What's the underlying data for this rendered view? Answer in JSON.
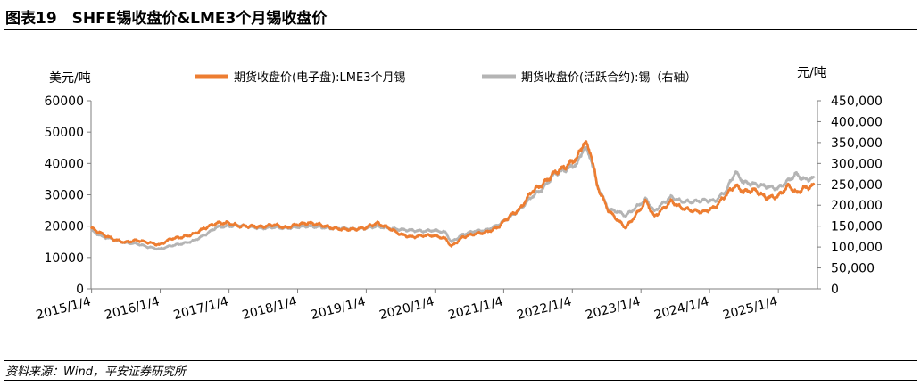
{
  "figure_title": "图表19　SHFE锡收盘价&LME3个月锡收盘价",
  "source_note": "资料来源：Wind，平安证券研究所",
  "colors": {
    "lme": "#ED7D31",
    "shfe": "#B4B4B4"
  },
  "chart_data": {
    "type": "line",
    "ylabel_left": "美元/吨",
    "ylabel_right": "元/吨",
    "ylim_left": [
      0,
      60000
    ],
    "ylim_right": [
      0,
      450000
    ],
    "yticks_left": [
      "0",
      "10000",
      "20000",
      "30000",
      "40000",
      "50000",
      "60000"
    ],
    "yticks_right": [
      "0",
      "50,000",
      "100,000",
      "150,000",
      "200,000",
      "250,000",
      "300,000",
      "350,000",
      "400,000",
      "450,000"
    ],
    "x_range": [
      "2015-01-01",
      "2025-07-31"
    ],
    "xticks": [
      "2015/1/4",
      "2016/1/4",
      "2017/1/4",
      "2018/1/4",
      "2019/1/4",
      "2020/1/4",
      "2021/1/4",
      "2022/1/4",
      "2023/1/4",
      "2024/1/4",
      "2025/1/4"
    ],
    "legend_position": "top",
    "series": [
      {
        "name": "期货收盘价(电子盘):LME3个月锡",
        "axis": "left",
        "dates": [
          "2015-01-01",
          "2015-03-01",
          "2015-05-01",
          "2015-07-01",
          "2015-09-01",
          "2015-11-01",
          "2016-01-01",
          "2016-03-01",
          "2016-05-01",
          "2016-07-01",
          "2016-09-01",
          "2016-11-01",
          "2017-01-01",
          "2017-03-01",
          "2017-05-01",
          "2017-07-01",
          "2017-09-01",
          "2017-11-01",
          "2018-01-01",
          "2018-03-01",
          "2018-05-01",
          "2018-07-01",
          "2018-09-01",
          "2018-11-01",
          "2019-01-01",
          "2019-03-01",
          "2019-05-01",
          "2019-07-01",
          "2019-09-01",
          "2019-11-01",
          "2020-01-01",
          "2020-03-01",
          "2020-04-01",
          "2020-06-01",
          "2020-08-01",
          "2020-10-01",
          "2020-12-01",
          "2021-02-01",
          "2021-04-01",
          "2021-06-01",
          "2021-08-01",
          "2021-10-01",
          "2021-12-01",
          "2022-02-01",
          "2022-03-08",
          "2022-04-15",
          "2022-05-15",
          "2022-07-15",
          "2022-09-01",
          "2022-10-15",
          "2022-12-01",
          "2023-02-01",
          "2023-03-15",
          "2023-05-01",
          "2023-06-15",
          "2023-08-01",
          "2023-10-01",
          "2023-12-01",
          "2024-02-01",
          "2024-04-01",
          "2024-05-20",
          "2024-07-01",
          "2024-09-01",
          "2024-11-01",
          "2025-01-01",
          "2025-03-01",
          "2025-04-10",
          "2025-05-15",
          "2025-07-15"
        ],
        "values": [
          19500,
          17500,
          15800,
          14800,
          15500,
          14800,
          14000,
          16000,
          16500,
          17500,
          19500,
          21000,
          21000,
          20000,
          20000,
          19800,
          20500,
          19500,
          20500,
          21000,
          20500,
          19500,
          19000,
          19000,
          19500,
          21000,
          19500,
          17500,
          16500,
          17000,
          17000,
          16000,
          13500,
          16500,
          17500,
          18000,
          19500,
          23000,
          25500,
          31000,
          33500,
          37000,
          39000,
          42000,
          47000,
          43000,
          33000,
          25000,
          22000,
          19500,
          23000,
          28000,
          23000,
          25500,
          28000,
          26000,
          25000,
          24500,
          26000,
          30000,
          33000,
          31000,
          31500,
          29000,
          29500,
          33000,
          30500,
          32000,
          33000
        ]
      },
      {
        "name": "期货收盘价(活跃合约):锡（右轴）",
        "axis": "right",
        "dates": [
          "2015-01-01",
          "2015-03-01",
          "2015-05-01",
          "2015-07-01",
          "2015-09-01",
          "2015-11-01",
          "2016-01-01",
          "2016-03-01",
          "2016-05-01",
          "2016-07-01",
          "2016-09-01",
          "2016-11-01",
          "2017-01-01",
          "2017-03-01",
          "2017-05-01",
          "2017-07-01",
          "2017-09-01",
          "2017-11-01",
          "2018-01-01",
          "2018-03-01",
          "2018-05-01",
          "2018-07-01",
          "2018-09-01",
          "2018-11-01",
          "2019-01-01",
          "2019-03-01",
          "2019-05-01",
          "2019-07-01",
          "2019-09-01",
          "2019-11-01",
          "2020-01-01",
          "2020-03-01",
          "2020-04-01",
          "2020-06-01",
          "2020-08-01",
          "2020-10-01",
          "2020-12-01",
          "2021-02-01",
          "2021-04-01",
          "2021-06-01",
          "2021-08-01",
          "2021-10-01",
          "2021-12-01",
          "2022-02-01",
          "2022-03-08",
          "2022-04-15",
          "2022-05-15",
          "2022-07-15",
          "2022-09-01",
          "2022-10-15",
          "2022-12-01",
          "2023-02-01",
          "2023-03-15",
          "2023-05-01",
          "2023-06-15",
          "2023-08-01",
          "2023-10-01",
          "2023-12-01",
          "2024-02-01",
          "2024-04-01",
          "2024-05-20",
          "2024-07-01",
          "2024-09-01",
          "2024-11-01",
          "2025-01-01",
          "2025-03-01",
          "2025-04-10",
          "2025-05-15",
          "2025-07-15"
        ],
        "values": [
          140000,
          125000,
          118000,
          110000,
          108000,
          100000,
          95000,
          103000,
          108000,
          115000,
          130000,
          148000,
          150000,
          152000,
          148000,
          145000,
          148000,
          145000,
          148000,
          150000,
          148000,
          145000,
          145000,
          143000,
          145000,
          150000,
          145000,
          142000,
          140000,
          138000,
          140000,
          135000,
          112000,
          130000,
          138000,
          140000,
          152000,
          170000,
          190000,
          220000,
          240000,
          275000,
          285000,
          300000,
          340000,
          310000,
          250000,
          190000,
          185000,
          175000,
          192000,
          215000,
          185000,
          205000,
          220000,
          210000,
          208000,
          212000,
          210000,
          235000,
          280000,
          255000,
          250000,
          245000,
          240000,
          260000,
          275000,
          262000,
          264000
        ]
      }
    ]
  }
}
